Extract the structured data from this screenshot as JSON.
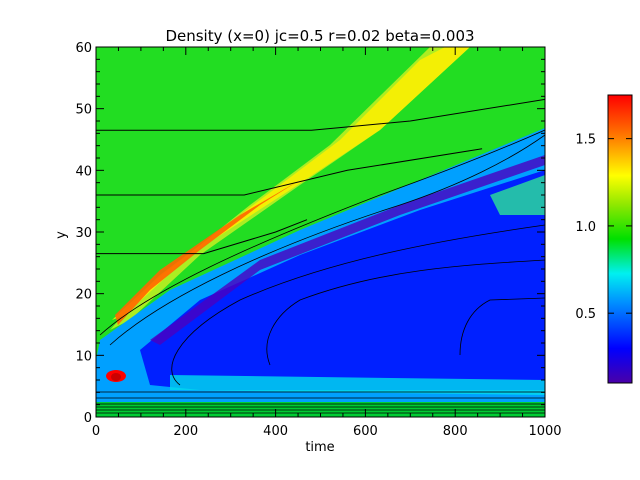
{
  "chart_data": {
    "type": "heatmap",
    "title": "Density (x=0) jc=0.5 r=0.02 beta=0.003",
    "xlabel": "time",
    "ylabel": "y",
    "xlim": [
      0,
      1000
    ],
    "ylim": [
      0,
      60
    ],
    "x_ticks": [
      "0",
      "200",
      "400",
      "600",
      "800",
      "1000"
    ],
    "y_ticks": [
      "0",
      "10",
      "20",
      "30",
      "40",
      "50",
      "60"
    ],
    "colorbar": {
      "range": [
        0.1,
        1.75
      ],
      "ticks": [
        "0.5",
        "1.0",
        "1.5"
      ],
      "colormap": "rainbow"
    },
    "background_value": 1.0,
    "features": [
      {
        "name": "high-density front",
        "value": 1.5,
        "y_start": 8,
        "y_end_at_t1000": 60
      },
      {
        "name": "low-density cavity",
        "value": 0.3,
        "y_range": [
          5,
          40
        ]
      },
      {
        "name": "initial peak",
        "value": 1.75,
        "time": 40,
        "y": 6
      }
    ],
    "contours": [
      {
        "points": [
          [
            0,
            46.5
          ],
          [
            480,
            46.5
          ],
          [
            700,
            48
          ],
          [
            1000,
            51.5
          ]
        ]
      },
      {
        "points": [
          [
            0,
            36
          ],
          [
            330,
            36
          ],
          [
            560,
            40
          ],
          [
            860,
            43.5
          ]
        ]
      },
      {
        "points": [
          [
            0,
            26.5
          ],
          [
            240,
            26.5
          ],
          [
            400,
            30
          ],
          [
            470,
            32
          ]
        ]
      }
    ]
  }
}
